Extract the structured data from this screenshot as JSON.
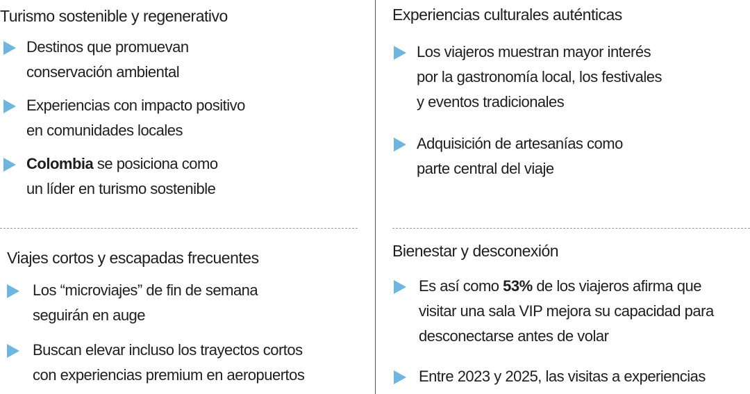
{
  "sections": [
    {
      "title": "Turismo sostenible y regenerativo",
      "bullets": [
        {
          "lines": [
            "Destinos que promuevan",
            "conservación ambiental"
          ]
        },
        {
          "lines": [
            "Experiencias con impacto positivo",
            "en comunidades locales"
          ]
        },
        {
          "lines": [
            {
              "strong": "Colombia",
              "after": " se posiciona como"
            },
            "un líder en turismo sostenible"
          ]
        }
      ]
    },
    {
      "title": "Experiencias culturales auténticas",
      "bullets": [
        {
          "lines": [
            "Los viajeros muestran mayor interés",
            "por la gastronomía local, los festivales",
            "y eventos tradicionales"
          ]
        },
        {
          "lines": [
            "Adquisición de artesanías como",
            "parte central del viaje"
          ]
        }
      ]
    },
    {
      "title": "Viajes cortos y escapadas frecuentes",
      "bullets": [
        {
          "lines": [
            "Los “microviajes” de fin de semana",
            "seguirán en auge"
          ]
        },
        {
          "lines": [
            "Buscan elevar incluso los trayectos cortos",
            "con experiencias premium en aeropuertos"
          ]
        }
      ]
    },
    {
      "title": "Bienestar y desconexión",
      "bullets": [
        {
          "lines": [
            {
              "before": "Es así como ",
              "strong": "53%",
              "after": " de los viajeros afirma que"
            },
            "visitar una sala VIP mejora su capacidad para",
            "desconectarse antes de volar"
          ]
        },
        {
          "lines": [
            "Entre 2023 y 2025, las visitas a experiencias"
          ]
        }
      ]
    }
  ]
}
